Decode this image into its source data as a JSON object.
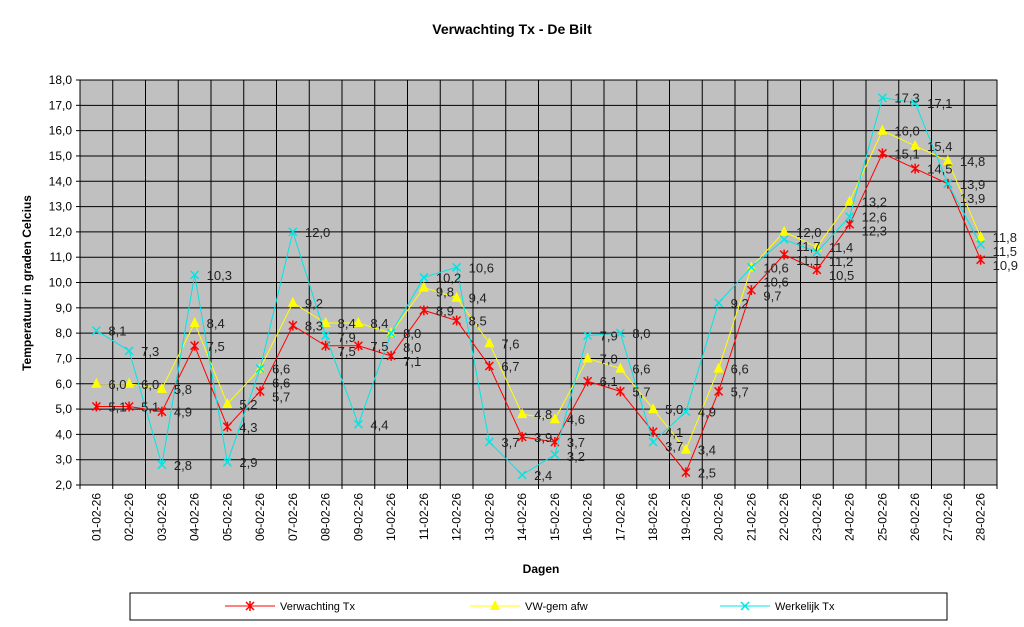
{
  "chart_data": {
    "type": "line",
    "title": "Verwachting Tx - De Bilt",
    "xlabel": "Dagen",
    "ylabel": "Temperatuur in graden Celcius",
    "ylim": [
      2.0,
      18.0
    ],
    "ytick_step": 1.0,
    "grid": true,
    "legend_position": "bottom",
    "categories": [
      "01-02-26",
      "02-02-26",
      "03-02-26",
      "04-02-26",
      "05-02-26",
      "06-02-26",
      "07-02-26",
      "08-02-26",
      "09-02-26",
      "10-02-26",
      "11-02-26",
      "12-02-26",
      "13-02-26",
      "14-02-26",
      "15-02-26",
      "16-02-26",
      "17-02-26",
      "18-02-26",
      "19-02-26",
      "20-02-26",
      "21-02-26",
      "22-02-26",
      "23-02-26",
      "24-02-26",
      "25-02-26",
      "26-02-26",
      "27-02-26",
      "28-02-26"
    ],
    "series": [
      {
        "name": "Verwachting Tx",
        "color": "#ff0000",
        "marker": "star",
        "values": [
          5.1,
          5.1,
          4.9,
          7.5,
          4.3,
          5.7,
          8.3,
          7.5,
          7.5,
          7.1,
          8.9,
          8.5,
          6.7,
          3.9,
          3.7,
          6.1,
          5.7,
          4.1,
          2.5,
          5.7,
          9.7,
          11.1,
          10.5,
          12.3,
          15.1,
          14.5,
          13.9,
          10.9
        ]
      },
      {
        "name": "VW-gem afw",
        "color": "#ffff00",
        "marker": "triangle",
        "values": [
          6.0,
          6.0,
          5.8,
          8.4,
          5.2,
          6.6,
          9.2,
          8.4,
          8.4,
          8.0,
          9.8,
          9.4,
          7.6,
          4.8,
          4.6,
          7.0,
          6.6,
          5.0,
          3.4,
          6.6,
          10.6,
          12.0,
          11.4,
          13.2,
          16.0,
          15.4,
          14.8,
          11.8
        ]
      },
      {
        "name": "Werkelijk Tx",
        "color": "#00e5e5",
        "marker": "x",
        "values": [
          8.1,
          7.3,
          2.8,
          10.3,
          2.9,
          6.6,
          12.0,
          7.9,
          4.4,
          8.0,
          10.2,
          10.6,
          3.7,
          2.4,
          3.2,
          7.9,
          8.0,
          3.7,
          4.9,
          9.2,
          10.6,
          11.7,
          11.2,
          12.6,
          17.3,
          17.1,
          13.9,
          11.5
        ]
      }
    ]
  }
}
